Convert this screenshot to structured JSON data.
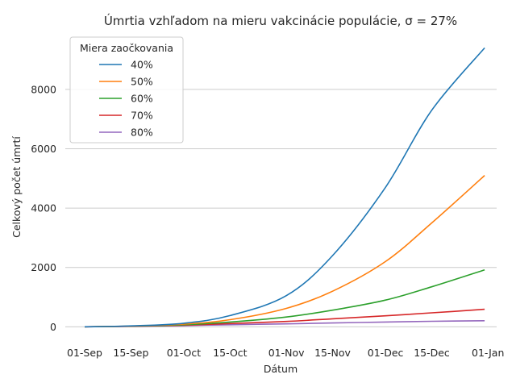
{
  "chart_data": {
    "type": "line",
    "title": "Úmrtia vzhľadom na mieru vakcinácie populácie, σ = 27%",
    "xlabel": "Dátum",
    "ylabel": "Celkový počet úmrtí",
    "grid": "horizontal",
    "legend": {
      "title": "Miera zaočkovania",
      "placement": "top-left"
    },
    "x_ticks": [
      "01-Sep",
      "15-Sep",
      "01-Oct",
      "15-Oct",
      "01-Nov",
      "15-Nov",
      "01-Dec",
      "15-Dec",
      "01-Jan"
    ],
    "y_ticks": [
      0,
      2000,
      4000,
      6000,
      8000
    ],
    "ylim": [
      -480,
      9900
    ],
    "x": [
      "01-Sep",
      "15-Sep",
      "01-Oct",
      "15-Oct",
      "01-Nov",
      "15-Nov",
      "01-Dec",
      "15-Dec",
      "31-Dec"
    ],
    "series": [
      {
        "name": "40%",
        "color": "#1f77b4",
        "values": [
          0,
          30,
          120,
          380,
          1050,
          2400,
          4700,
          7300,
          9400
        ]
      },
      {
        "name": "50%",
        "color": "#ff7f0e",
        "values": [
          0,
          25,
          90,
          240,
          620,
          1200,
          2200,
          3500,
          5100
        ]
      },
      {
        "name": "60%",
        "color": "#2ca02c",
        "values": [
          0,
          22,
          70,
          160,
          330,
          560,
          900,
          1350,
          1920
        ]
      },
      {
        "name": "70%",
        "color": "#d62728",
        "values": [
          0,
          18,
          55,
          110,
          180,
          270,
          370,
          470,
          590
        ]
      },
      {
        "name": "80%",
        "color": "#9467bd",
        "values": [
          0,
          14,
          40,
          70,
          100,
          130,
          160,
          185,
          205
        ]
      }
    ]
  }
}
